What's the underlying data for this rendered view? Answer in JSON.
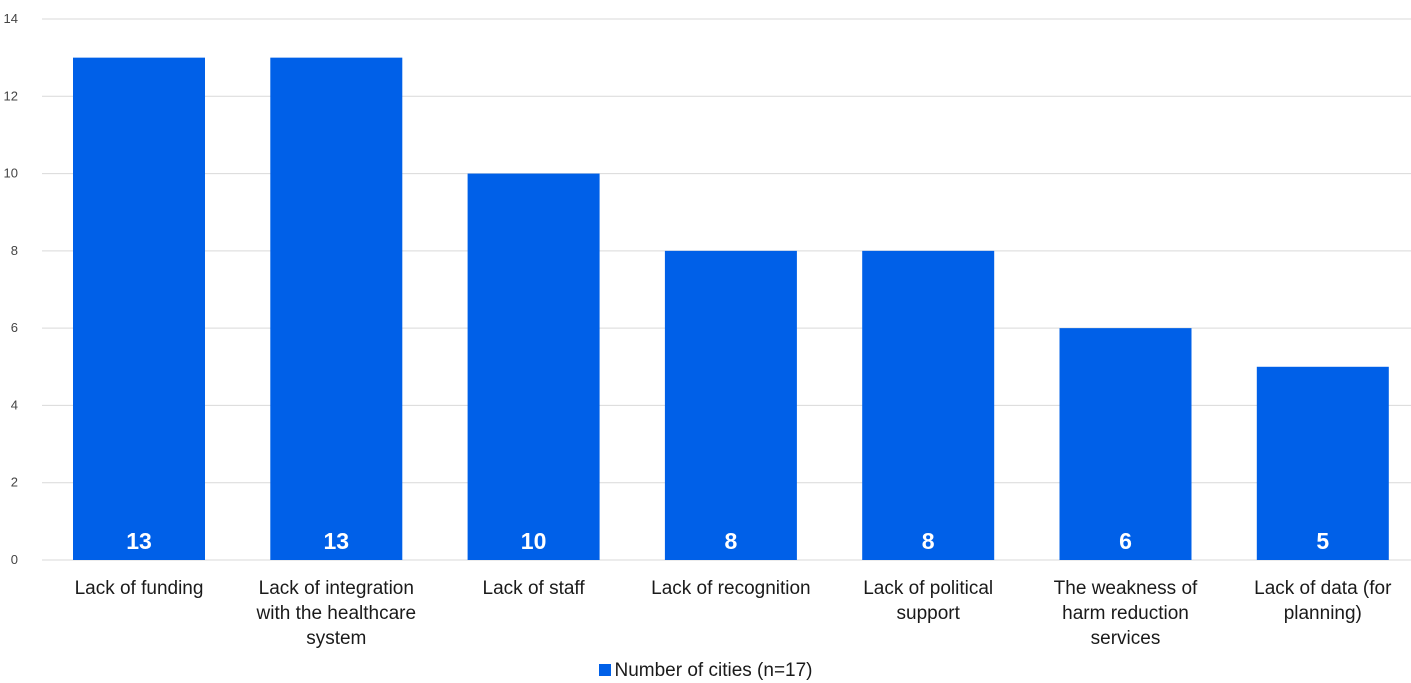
{
  "chart_data": {
    "type": "bar",
    "categories": [
      "Lack of funding",
      "Lack of integration with the healthcare system",
      "Lack of staff",
      "Lack of recognition",
      "Lack of political support",
      "The weakness of harm reduction services",
      "Lack of data (for planning)"
    ],
    "category_lines": [
      [
        "Lack of funding"
      ],
      [
        "Lack of integration",
        "with the healthcare",
        "system"
      ],
      [
        "Lack of staff"
      ],
      [
        "Lack of recognition"
      ],
      [
        "Lack of political",
        "support"
      ],
      [
        "The weakness of",
        "harm reduction",
        "services"
      ],
      [
        "Lack of data (for",
        "planning)"
      ]
    ],
    "series": [
      {
        "name": "Number of cities (n=17)",
        "values": [
          13,
          13,
          10,
          8,
          8,
          6,
          5
        ]
      }
    ],
    "ylim": [
      0,
      14
    ],
    "yticks": [
      0,
      2,
      4,
      6,
      8,
      10,
      12,
      14
    ],
    "grid": true,
    "data_labels": true,
    "legend_position": "bottom",
    "bar_color": "#0060E8",
    "grid_color": "#D9D9D9"
  }
}
